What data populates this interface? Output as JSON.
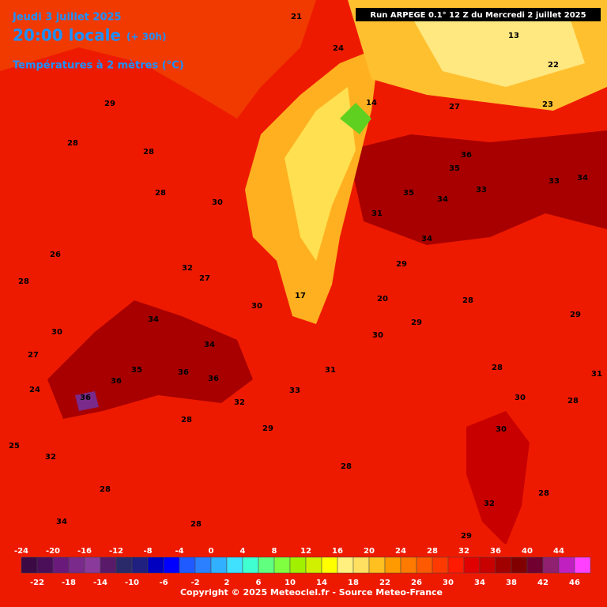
{
  "header": {
    "date": "Jeudi 3 juillet 2025",
    "time": "20:00 locale",
    "lead": "(+ 30h)",
    "field": "Températures à 2 mètres (°C)",
    "run": "Run ARPEGE 0.1° 12 Z du Mercredi 2 juillet 2025"
  },
  "map_labels": [
    36,
    35,
    35,
    34,
    33,
    34,
    33,
    34,
    32,
    27,
    30,
    34,
    34,
    36,
    36,
    36,
    36,
    35,
    32,
    33,
    31,
    28,
    29,
    28,
    28,
    28,
    28,
    28,
    30,
    29,
    30,
    30,
    32,
    28,
    25,
    32,
    34,
    24,
    27,
    30,
    29,
    28,
    28,
    28,
    30,
    26,
    28,
    21,
    24,
    14,
    17,
    20,
    29,
    31,
    13,
    22,
    23,
    27,
    29,
    31,
    28,
    29
  ],
  "colorbar": {
    "lim": [
      -24,
      48
    ],
    "ticks_top": [
      -24,
      -20,
      -16,
      -12,
      -8,
      -4,
      0,
      4,
      8,
      12,
      16,
      20,
      24,
      28,
      32,
      36,
      40,
      44
    ],
    "ticks_bottom": [
      -22,
      -18,
      -14,
      -10,
      -6,
      -2,
      2,
      6,
      10,
      14,
      18,
      22,
      26,
      30,
      34,
      38,
      42,
      46
    ],
    "colors": [
      "#3b0a45",
      "#4b0f5a",
      "#6a1a7a",
      "#7a2a8a",
      "#8a3a9a",
      "#5a1a6a",
      "#2a2a6a",
      "#202080",
      "#0000c0",
      "#0000ff",
      "#1e5aff",
      "#2a80ff",
      "#30b0ff",
      "#40e0ff",
      "#40ffd0",
      "#60ff80",
      "#80ff40",
      "#a0f000",
      "#d0f000",
      "#ffff00",
      "#fff080",
      "#ffe060",
      "#ffc020",
      "#ff9a00",
      "#ff7a00",
      "#ff5a00",
      "#ff3a00",
      "#ff1a00",
      "#e00000",
      "#c80000",
      "#a00000",
      "#800000",
      "#700030",
      "#902070",
      "#c020c0",
      "#ff40ff"
    ]
  },
  "footer": {
    "copyright": "Copyright © 2025 Meteociel.fr - Source Meteo-France"
  }
}
